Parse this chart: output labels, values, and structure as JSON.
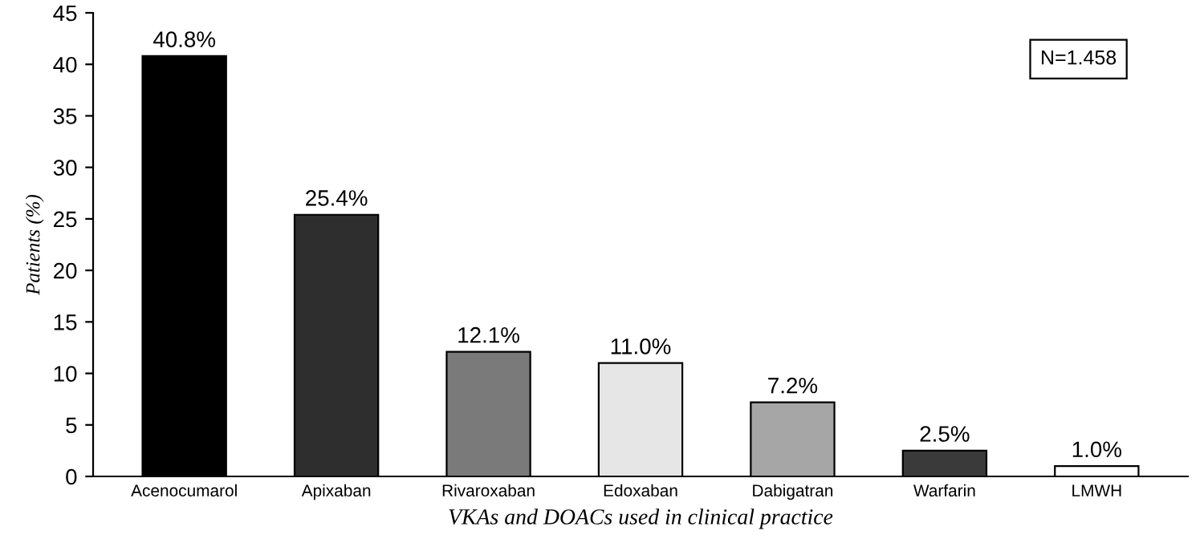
{
  "chart_data": {
    "type": "bar",
    "xlabel": "VKAs and DOACs used in clinical practice",
    "ylabel": "Patients (%)",
    "categories": [
      "Acenocumarol",
      "Apixaban",
      "Rivaroxaban",
      "Edoxaban",
      "Dabigatran",
      "Warfarin",
      "LMWH"
    ],
    "values": [
      40.8,
      25.4,
      12.1,
      11.0,
      7.2,
      2.5,
      1.0
    ],
    "colors": [
      "#000000",
      "#2e2e2e",
      "#7a7a7a",
      "#e6e6e6",
      "#a6a6a6",
      "#3a3a3a",
      "#ffffff"
    ],
    "value_labels": [
      "40.8%",
      "25.4%",
      "12.1%",
      "11.0%",
      "7.2%",
      "2.5%",
      "1.0%"
    ],
    "ylim": [
      0,
      45
    ],
    "yticks": [
      0,
      5,
      10,
      15,
      20,
      25,
      30,
      35,
      40,
      45
    ],
    "grid": false,
    "annotations": [
      "N=1.458"
    ]
  }
}
